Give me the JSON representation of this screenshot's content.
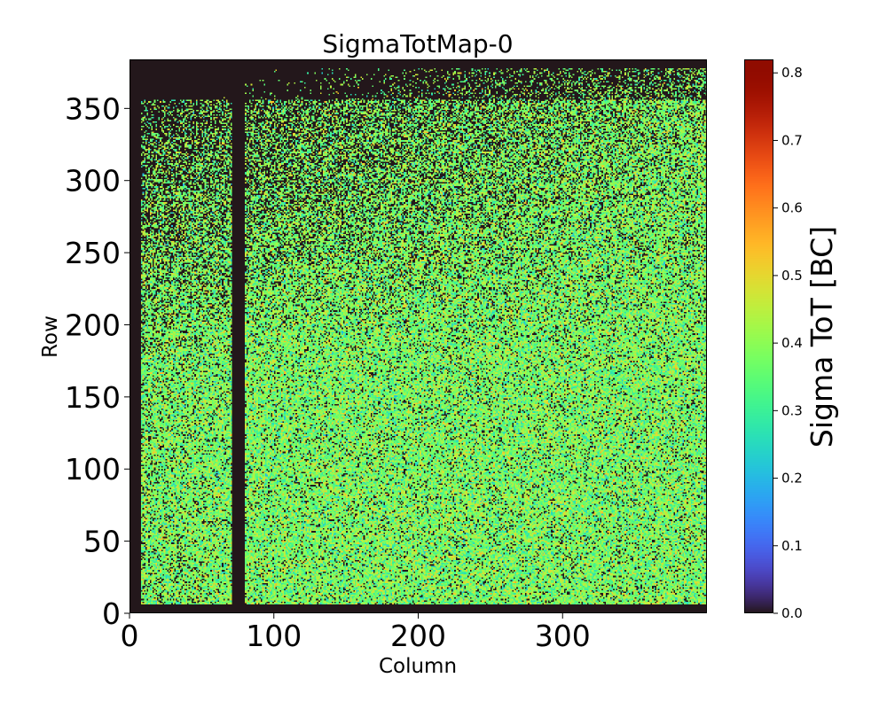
{
  "chart_data": {
    "type": "heatmap",
    "title": "SigmaTotMap-0",
    "xlabel": "Column",
    "ylabel": "Row",
    "colorbar_label": "Sigma ToT [BC]",
    "colormap": "turbo",
    "n_columns": 400,
    "n_rows": 384,
    "xlim": [
      0,
      400
    ],
    "ylim": [
      0,
      384
    ],
    "clim": [
      0.0,
      0.82
    ],
    "x_ticks": [
      0,
      100,
      200,
      300
    ],
    "x_tick_labels": [
      "0",
      "100",
      "200",
      "300"
    ],
    "y_ticks": [
      0,
      50,
      100,
      150,
      200,
      250,
      300,
      350
    ],
    "y_tick_labels": [
      "0",
      "50",
      "100",
      "150",
      "200",
      "250",
      "300",
      "350"
    ],
    "colorbar_ticks": [
      0.0,
      0.1,
      0.2,
      0.3,
      0.4,
      0.5,
      0.6,
      0.7,
      0.8
    ],
    "colorbar_tick_labels": [
      "0.0",
      "0.1",
      "0.2",
      "0.3",
      "0.4",
      "0.5",
      "0.6",
      "0.7",
      "0.8"
    ],
    "features": {
      "dead_columns": [
        [
          0,
          8
        ],
        [
          71,
          80
        ]
      ],
      "dead_rows_bottom": [
        0,
        6
      ],
      "dead_rows_top": [
        378,
        384
      ],
      "typical_value": 0.38,
      "typical_spread": 0.09,
      "upper_left_sparse": true
    }
  },
  "colors": {
    "background": "#ffffff",
    "axis": "#000000"
  }
}
